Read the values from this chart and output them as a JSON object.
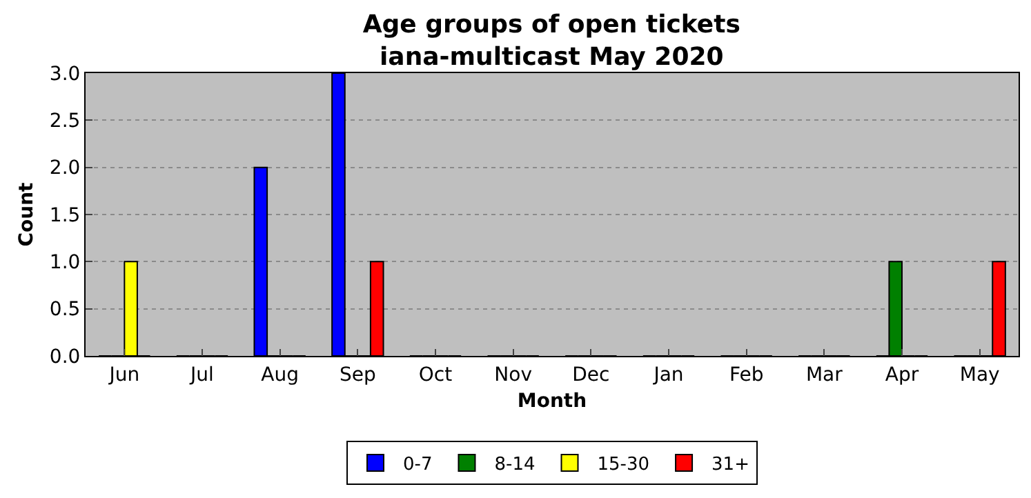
{
  "chart_data": {
    "type": "bar",
    "title": "Age groups of open tickets\niana-multicast May 2020",
    "xlabel": "Month",
    "ylabel": "Count",
    "categories": [
      "Jun",
      "Jul",
      "Aug",
      "Sep",
      "Oct",
      "Nov",
      "Dec",
      "Jan",
      "Feb",
      "Mar",
      "Apr",
      "May"
    ],
    "series": [
      {
        "name": "0-7",
        "color": "#0000ff",
        "values": [
          0,
          0,
          2,
          3,
          0,
          0,
          0,
          0,
          0,
          0,
          0,
          0
        ]
      },
      {
        "name": "8-14",
        "color": "#008000",
        "values": [
          0,
          0,
          0,
          0,
          0,
          0,
          0,
          0,
          0,
          0,
          1,
          0
        ]
      },
      {
        "name": "15-30",
        "color": "#ffff00",
        "values": [
          1,
          0,
          0,
          0,
          0,
          0,
          0,
          0,
          0,
          0,
          0,
          0
        ]
      },
      {
        "name": "31+",
        "color": "#ff0000",
        "values": [
          0,
          0,
          0,
          1,
          0,
          0,
          0,
          0,
          0,
          0,
          0,
          1
        ]
      }
    ],
    "ylim": [
      0,
      3
    ],
    "yticks": [
      {
        "value": 0,
        "label": "0.0"
      },
      {
        "value": 0.5,
        "label": "0.5"
      },
      {
        "value": 1,
        "label": "1.0"
      },
      {
        "value": 1.5,
        "label": "1.5"
      },
      {
        "value": 2,
        "label": "2.0"
      },
      {
        "value": 2.5,
        "label": "2.5"
      },
      {
        "value": 3,
        "label": "3.0"
      }
    ],
    "grid": "y",
    "legend": "bottom"
  }
}
